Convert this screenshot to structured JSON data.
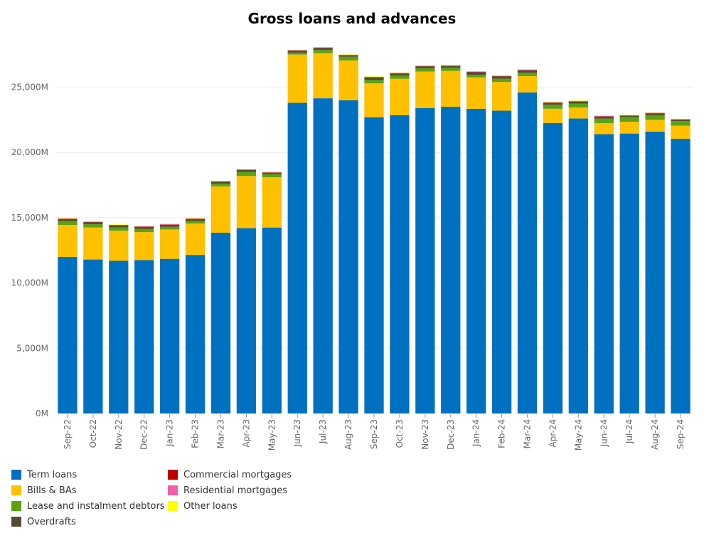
{
  "chart_data": {
    "type": "bar",
    "stacked": true,
    "title": "Gross loans and advances",
    "xlabel": "",
    "ylabel": "",
    "ylim": [
      0,
      29500
    ],
    "y_ticks": [
      0,
      5000,
      10000,
      15000,
      20000,
      25000
    ],
    "y_tick_labels": [
      "0M",
      "5,000M",
      "10,000M",
      "15,000M",
      "20,000M",
      "25,000M"
    ],
    "grid": true,
    "legend_position": "bottom",
    "categories": [
      "Sep-22",
      "Oct-22",
      "Nov-22",
      "Dec-22",
      "Jan-23",
      "Feb-23",
      "Mar-23",
      "Apr-23",
      "May-23",
      "Jun-23",
      "Jul-23",
      "Aug-23",
      "Sep-23",
      "Oct-23",
      "Nov-23",
      "Dec-23",
      "Jan-24",
      "Feb-24",
      "Mar-24",
      "Apr-24",
      "May-24",
      "Jun-24",
      "Jul-24",
      "Aug-24",
      "Sep-24"
    ],
    "series": [
      {
        "name": "Term loans",
        "color": "#0070c0",
        "values": [
          12000,
          11800,
          11700,
          11750,
          11850,
          12150,
          13850,
          14200,
          14250,
          23800,
          24150,
          24000,
          22700,
          22850,
          23400,
          23500,
          23350,
          23200,
          24600,
          22250,
          22600,
          21400,
          21450,
          21600,
          21050
        ]
      },
      {
        "name": "Bills & BAs",
        "color": "#ffc000",
        "values": [
          2450,
          2450,
          2300,
          2150,
          2250,
          2400,
          3550,
          4000,
          3850,
          3700,
          3450,
          3050,
          2600,
          2800,
          2800,
          2750,
          2400,
          2200,
          1250,
          1100,
          850,
          850,
          900,
          900,
          1000
        ]
      },
      {
        "name": "Lease and instalment debtors",
        "color": "#5ba215",
        "values": [
          300,
          250,
          250,
          250,
          200,
          200,
          200,
          300,
          250,
          150,
          250,
          280,
          250,
          250,
          250,
          250,
          200,
          250,
          250,
          300,
          300,
          350,
          350,
          350,
          350
        ]
      },
      {
        "name": "Overdrafts",
        "color": "#574b36",
        "values": [
          150,
          150,
          150,
          150,
          150,
          150,
          150,
          150,
          100,
          150,
          150,
          100,
          200,
          150,
          150,
          130,
          200,
          180,
          200,
          150,
          150,
          150,
          100,
          150,
          100
        ]
      },
      {
        "name": "Commercial mortgages",
        "color": "#c00000",
        "values": [
          20,
          20,
          20,
          20,
          20,
          20,
          20,
          20,
          20,
          20,
          20,
          20,
          20,
          20,
          20,
          20,
          20,
          20,
          20,
          20,
          20,
          20,
          20,
          20,
          20
        ]
      },
      {
        "name": "Residential mortgages",
        "color": "#f25fa5",
        "values": [
          30,
          30,
          30,
          30,
          30,
          30,
          30,
          30,
          30,
          30,
          30,
          30,
          30,
          30,
          30,
          30,
          30,
          30,
          30,
          30,
          30,
          30,
          30,
          30,
          30
        ]
      },
      {
        "name": "Other loans",
        "color": "#ffff00",
        "values": [
          30,
          30,
          30,
          30,
          30,
          30,
          30,
          30,
          30,
          30,
          30,
          30,
          30,
          30,
          30,
          30,
          30,
          30,
          30,
          30,
          30,
          30,
          30,
          30,
          30
        ]
      }
    ]
  },
  "legend": {
    "items": [
      "Term loans",
      "Bills & BAs",
      "Lease and instalment debtors",
      "Overdrafts",
      "Commercial mortgages",
      "Residential mortgages",
      "Other loans"
    ]
  }
}
